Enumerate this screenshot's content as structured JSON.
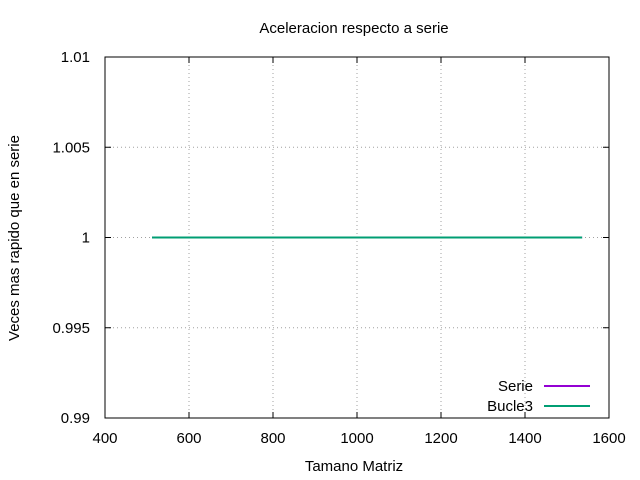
{
  "chart_data": {
    "type": "line",
    "title": "Aceleracion respecto a serie",
    "xlabel": "Tamano Matriz",
    "ylabel": "Veces mas rapido que en serie",
    "xlim": [
      400,
      1600
    ],
    "ylim": [
      0.99,
      1.01
    ],
    "x_ticks": [
      400,
      600,
      800,
      1000,
      1200,
      1400,
      1600
    ],
    "y_ticks": [
      0.99,
      0.995,
      1,
      1.005,
      1.01
    ],
    "x_tick_labels": [
      "400",
      "600",
      "800",
      "1000",
      "1200",
      "1400",
      "1600"
    ],
    "y_tick_labels": [
      "0.99",
      "0.995",
      "1",
      "1.005",
      "1.01"
    ],
    "grid": true,
    "legend_position": "bottom-right",
    "series": [
      {
        "name": "Serie",
        "color": "#9400d3",
        "x": [
          512,
          1536
        ],
        "y": [
          1,
          1
        ]
      },
      {
        "name": "Bucle3",
        "color": "#009e73",
        "x": [
          512,
          1536
        ],
        "y": [
          1,
          1
        ]
      }
    ]
  }
}
